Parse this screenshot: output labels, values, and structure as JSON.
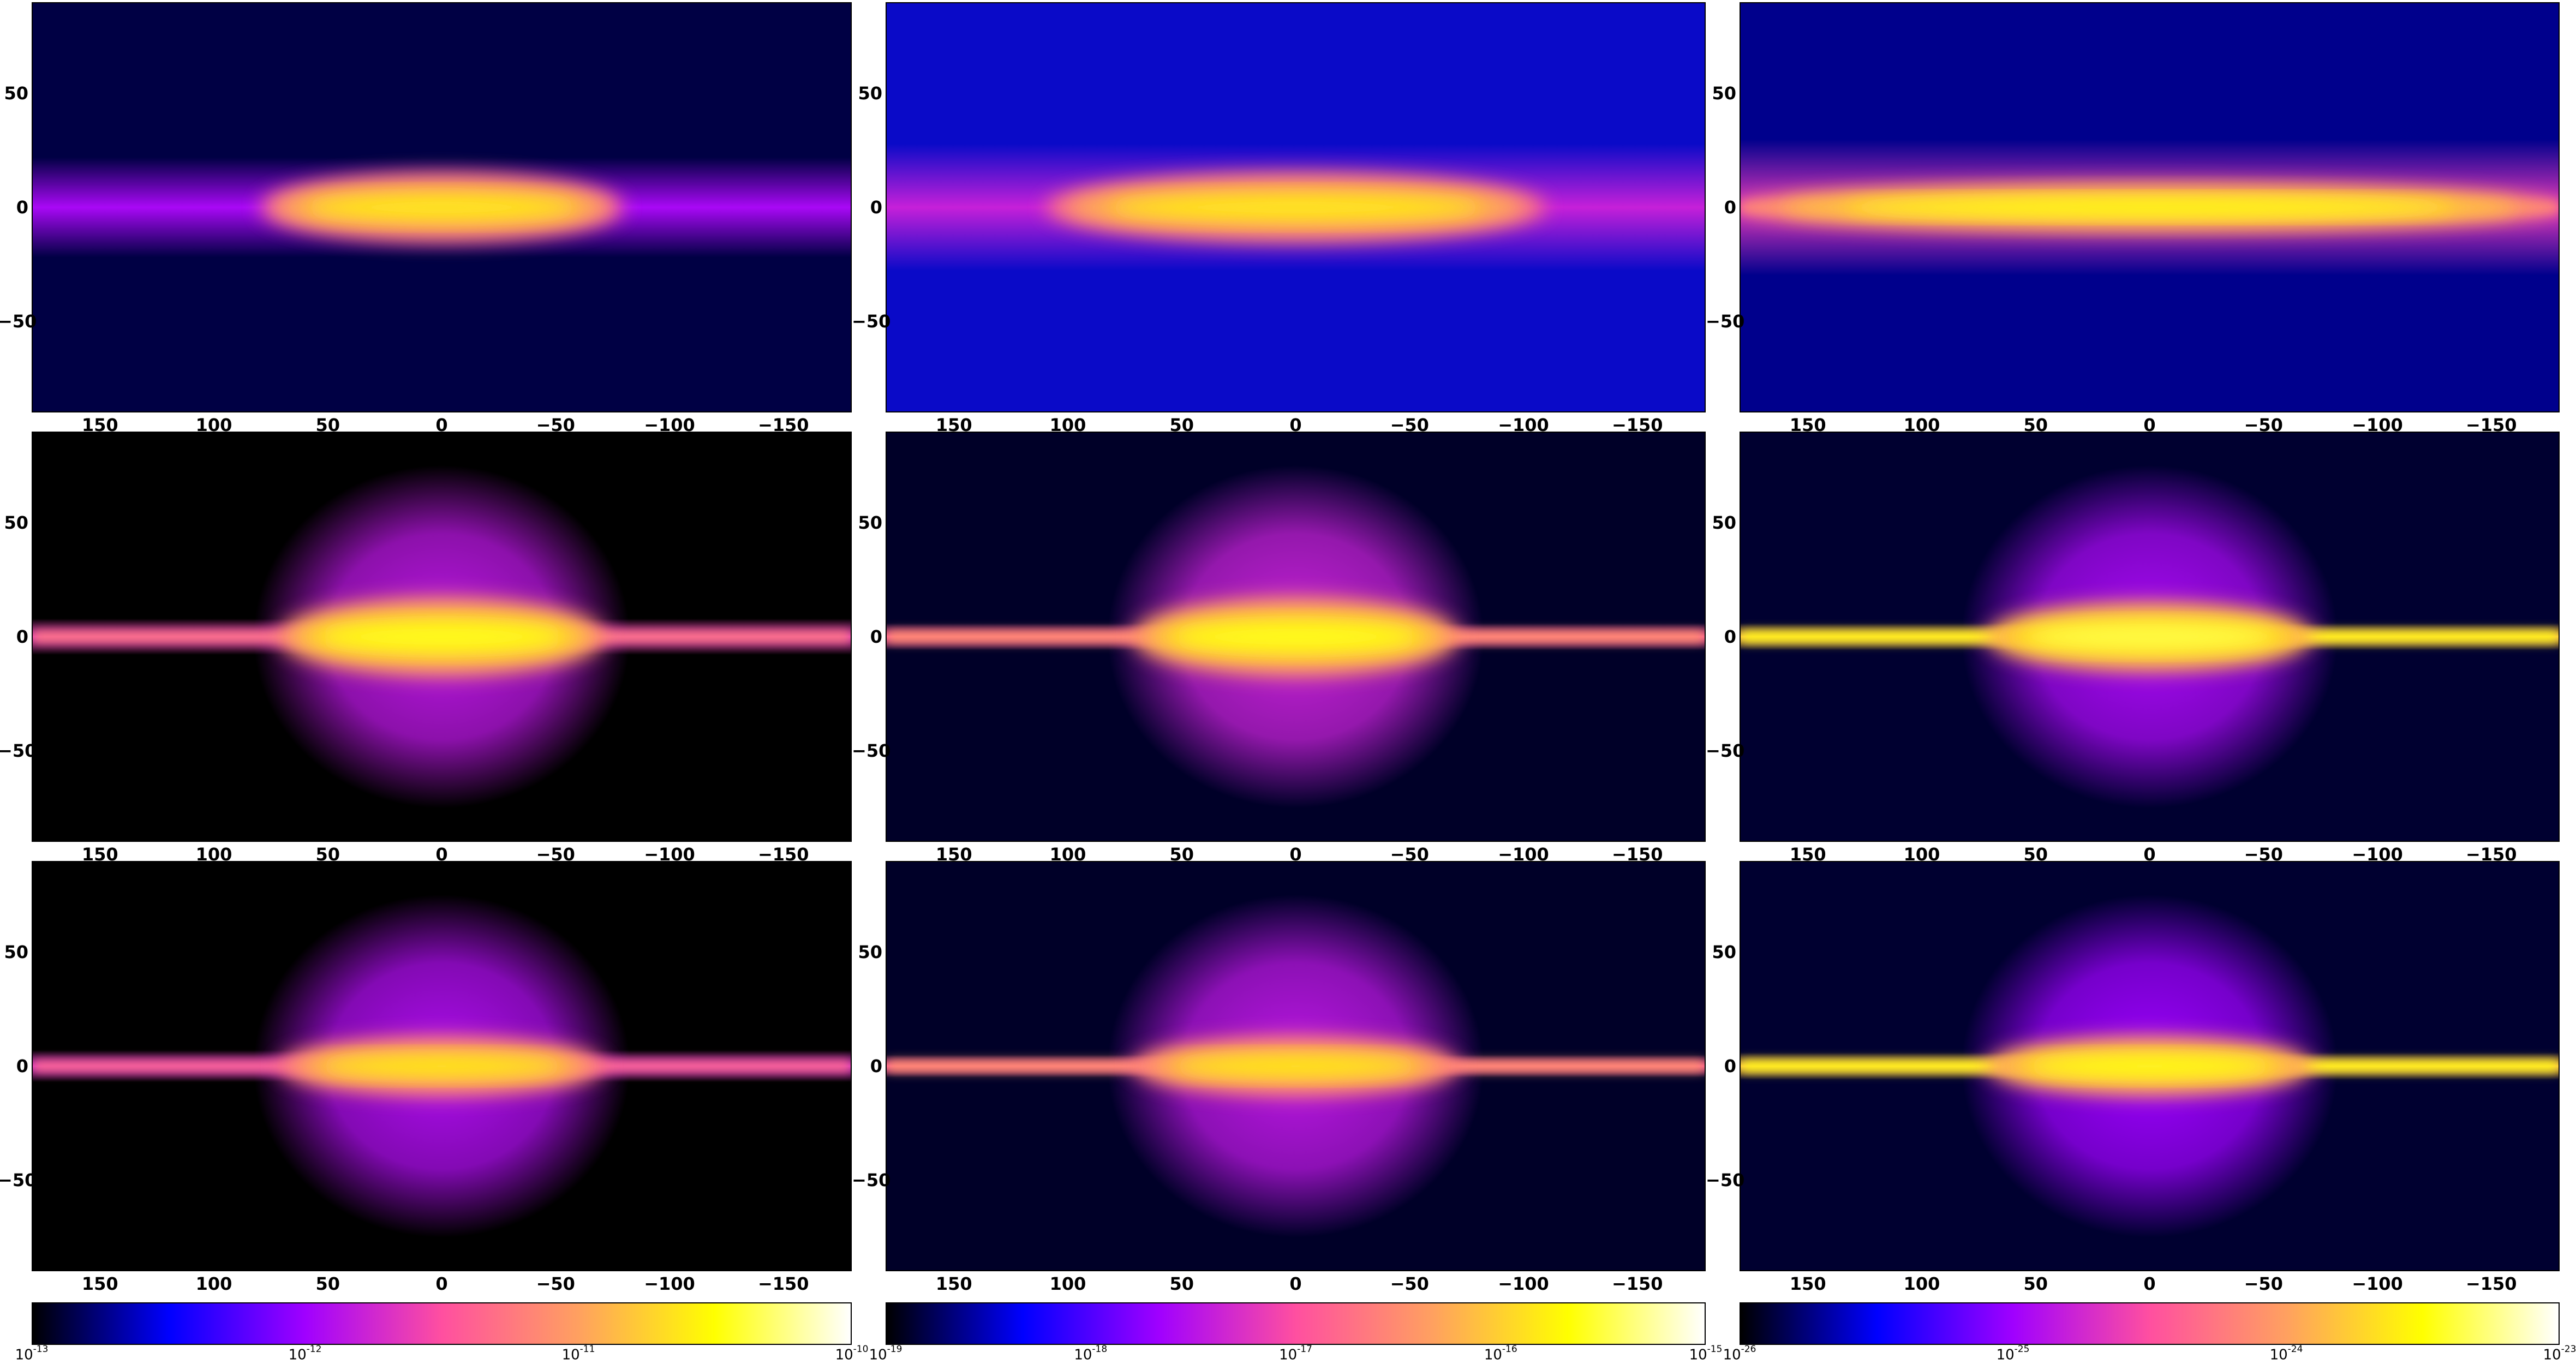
{
  "chart_data": {
    "type": "heatmap",
    "projection": "galactic longitude-latitude all-sky map (9 panels, 3x3 grid)",
    "colormap": [
      "#000000",
      "#0000ff",
      "#a000ff",
      "#ff4fa0",
      "#ffa060",
      "#ffff00",
      "#ffffff"
    ],
    "x_ticks": [
      "150",
      "100",
      "50",
      "0",
      "−50",
      "−100",
      "−150"
    ],
    "x_tick_values": [
      150,
      100,
      50,
      0,
      -50,
      -100,
      -150
    ],
    "xlim": [
      180,
      -180
    ],
    "y_ticks": [
      "50",
      "0",
      "−50"
    ],
    "y_tick_values": [
      50,
      0,
      -50
    ],
    "ylim": [
      -90,
      90
    ],
    "colorbars": [
      {
        "scale": "log",
        "ticks": [
          {
            "base": "10",
            "exp": "-13"
          },
          {
            "base": "10",
            "exp": "-12"
          },
          {
            "base": "10",
            "exp": "-11"
          },
          {
            "base": "10",
            "exp": "-10"
          }
        ],
        "range": [
          1e-13,
          1e-10
        ]
      },
      {
        "scale": "log",
        "ticks": [
          {
            "base": "10",
            "exp": "-19"
          },
          {
            "base": "10",
            "exp": "-18"
          },
          {
            "base": "10",
            "exp": "-17"
          },
          {
            "base": "10",
            "exp": "-16"
          },
          {
            "base": "10",
            "exp": "-15"
          }
        ],
        "range": [
          1e-19,
          1e-15
        ]
      },
      {
        "scale": "log",
        "ticks": [
          {
            "base": "10",
            "exp": "-26"
          },
          {
            "base": "10",
            "exp": "-25"
          },
          {
            "base": "10",
            "exp": "-24"
          },
          {
            "base": "10",
            "exp": "-23"
          }
        ],
        "range": [
          1e-26,
          1e-23
        ]
      }
    ],
    "panels": [
      {
        "row": 0,
        "col": 0,
        "background": "#000044",
        "halo": null,
        "disk": {
          "half_length_deg": 80,
          "half_width_deg": 7,
          "peak": 0.8
        },
        "band": {
          "half_width_deg": 22,
          "level": 0.35
        }
      },
      {
        "row": 0,
        "col": 1,
        "background": "#0a0ac8",
        "halo": null,
        "disk": {
          "half_length_deg": 110,
          "half_width_deg": 7,
          "peak": 0.8
        },
        "band": {
          "half_width_deg": 28,
          "level": 0.4
        }
      },
      {
        "row": 0,
        "col": 2,
        "background": "#00008c",
        "halo": null,
        "disk": {
          "half_length_deg": 180,
          "half_width_deg": 5,
          "peak": 0.85
        },
        "band": {
          "half_width_deg": 30,
          "level": 0.45
        }
      },
      {
        "row": 1,
        "col": 0,
        "background": "#000000",
        "halo": {
          "radius_deg": 72,
          "level": 0.38
        },
        "disk": {
          "half_length_deg": 72,
          "half_width_deg": 8,
          "peak": 0.85
        },
        "band": {
          "half_width_deg": 8,
          "level": 0.45
        }
      },
      {
        "row": 1,
        "col": 1,
        "background": "#000028",
        "halo": {
          "radius_deg": 72,
          "level": 0.4
        },
        "disk": {
          "half_length_deg": 72,
          "half_width_deg": 8,
          "peak": 0.85
        },
        "band": {
          "half_width_deg": 6,
          "level": 0.5
        }
      },
      {
        "row": 1,
        "col": 2,
        "background": "#000030",
        "halo": {
          "radius_deg": 72,
          "level": 0.35
        },
        "disk": {
          "half_length_deg": 72,
          "half_width_deg": 7,
          "peak": 0.88
        },
        "band": {
          "half_width_deg": 6,
          "level": 0.7
        }
      },
      {
        "row": 2,
        "col": 0,
        "background": "#000000",
        "halo": {
          "radius_deg": 72,
          "level": 0.36
        },
        "disk": {
          "half_length_deg": 72,
          "half_width_deg": 6,
          "peak": 0.8
        },
        "band": {
          "half_width_deg": 7,
          "level": 0.42
        }
      },
      {
        "row": 2,
        "col": 1,
        "background": "#000028",
        "halo": {
          "radius_deg": 72,
          "level": 0.38
        },
        "disk": {
          "half_length_deg": 72,
          "half_width_deg": 6,
          "peak": 0.8
        },
        "band": {
          "half_width_deg": 5,
          "level": 0.5
        }
      },
      {
        "row": 2,
        "col": 2,
        "background": "#000030",
        "halo": {
          "radius_deg": 72,
          "level": 0.33
        },
        "disk": {
          "half_length_deg": 72,
          "half_width_deg": 6,
          "peak": 0.85
        },
        "band": {
          "half_width_deg": 6,
          "level": 0.7
        }
      }
    ]
  }
}
